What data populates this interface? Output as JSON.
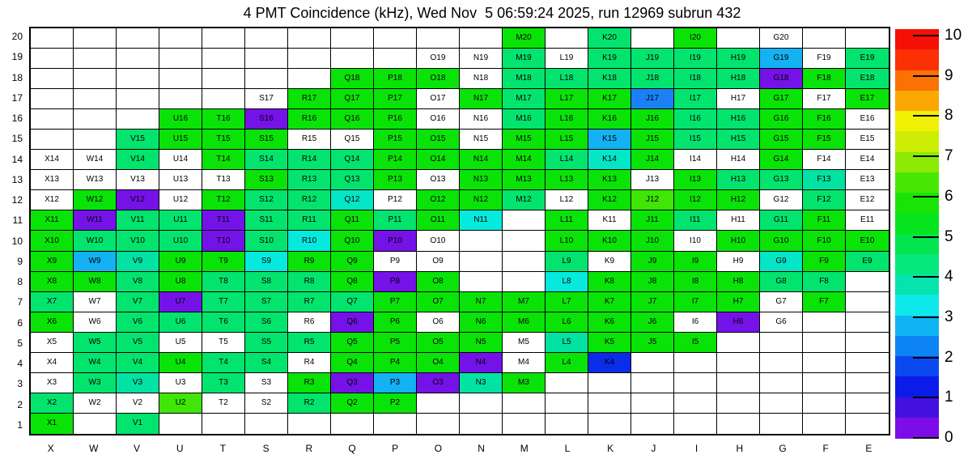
{
  "title": "4 PMT Coincidence (kHz), Wed Nov  5 06:59:24 2025, run 12969 subrun 432",
  "chart_data": {
    "type": "heatmap",
    "title": "4 PMT Coincidence (kHz), Wed Nov  5 06:59:24 2025, run 12969 subrun 432",
    "xlabel": "",
    "ylabel": "",
    "columns": [
      "X",
      "W",
      "V",
      "U",
      "T",
      "S",
      "R",
      "Q",
      "P",
      "O",
      "N",
      "M",
      "L",
      "K",
      "J",
      "I",
      "H",
      "G",
      "F",
      "E"
    ],
    "row_numbers": [
      20,
      19,
      18,
      17,
      16,
      15,
      14,
      13,
      12,
      11,
      10,
      9,
      8,
      7,
      6,
      5,
      4,
      3,
      2,
      1
    ],
    "legend_position": "right",
    "grid_lines": true,
    "cell_label_rule": "column letter + row number (e.g. X14); blank string = no channel drawn; 'w' = white cell with label (no rate)",
    "classes": {
      "g": "#0ae307",
      "lm": "#3fe607",
      "sg": "#02e46e",
      "tq": "#02e2a2",
      "tc": "#04e6c6",
      "cy": "#06eade",
      "sky": "#14b2f2",
      "db": "#1b80f5",
      "bl": "#0b2ce8",
      "vi": "#7512e8",
      "w": "#ffffff"
    },
    "class_value_estimates_khz": {
      "g": 5.3,
      "lm": 6.3,
      "sg": 4.3,
      "tq": 3.8,
      "tc": 3.6,
      "cy": 3.2,
      "sky": 2.7,
      "db": 2.3,
      "bl": 1.3,
      "vi": 0.3,
      "w": null
    },
    "grid": [
      {
        "n": 20,
        "cells": [
          "",
          "",
          "",
          "",
          "",
          "",
          "",
          "",
          "",
          "",
          "",
          "g",
          "",
          "sg",
          "",
          "g",
          "",
          "w",
          "",
          ""
        ]
      },
      {
        "n": 19,
        "cells": [
          "",
          "",
          "",
          "",
          "",
          "",
          "",
          "",
          "",
          "w",
          "w",
          "sg",
          "w",
          "sg",
          "sg",
          "sg",
          "sg",
          "sky",
          "w",
          "sg"
        ]
      },
      {
        "n": 18,
        "cells": [
          "",
          "",
          "",
          "",
          "",
          "",
          "",
          "g",
          "g",
          "g",
          "w",
          "sg",
          "sg",
          "sg",
          "sg",
          "sg",
          "sg",
          "vi",
          "g",
          "sg"
        ]
      },
      {
        "n": 17,
        "cells": [
          "",
          "",
          "",
          "",
          "",
          "w",
          "g",
          "g",
          "g",
          "w",
          "g",
          "sg",
          "g",
          "g",
          "db",
          "sg",
          "w",
          "g",
          "w",
          "g"
        ]
      },
      {
        "n": 16,
        "cells": [
          "",
          "",
          "",
          "g",
          "g",
          "vi",
          "g",
          "g",
          "g",
          "w",
          "w",
          "sg",
          "g",
          "g",
          "g",
          "sg",
          "sg",
          "g",
          "g",
          "w"
        ]
      },
      {
        "n": 15,
        "cells": [
          "",
          "",
          "sg",
          "g",
          "g",
          "g",
          "w",
          "w",
          "g",
          "g",
          "w",
          "g",
          "g",
          "sky",
          "g",
          "sg",
          "sg",
          "g",
          "g",
          "w"
        ]
      },
      {
        "n": 14,
        "cells": [
          "w",
          "w",
          "sg",
          "w",
          "g",
          "sg",
          "sg",
          "sg",
          "g",
          "g",
          "g",
          "g",
          "sg",
          "tc",
          "g",
          "w",
          "w",
          "g",
          "w",
          "w"
        ]
      },
      {
        "n": 13,
        "cells": [
          "w",
          "w",
          "w",
          "w",
          "w",
          "g",
          "sg",
          "sg",
          "g",
          "w",
          "g",
          "g",
          "g",
          "g",
          "w",
          "g",
          "sg",
          "sg",
          "tq",
          "w"
        ]
      },
      {
        "n": 12,
        "cells": [
          "w",
          "g",
          "vi",
          "w",
          "g",
          "sg",
          "sg",
          "tc",
          "w",
          "g",
          "g",
          "sg",
          "w",
          "g",
          "lm",
          "g",
          "g",
          "w",
          "sg",
          "w"
        ]
      },
      {
        "n": 11,
        "cells": [
          "g",
          "vi",
          "sg",
          "sg",
          "vi",
          "sg",
          "sg",
          "g",
          "sg",
          "g",
          "cy",
          "",
          "g",
          "w",
          "g",
          "sg",
          "w",
          "sg",
          "g",
          "w"
        ]
      },
      {
        "n": 10,
        "cells": [
          "g",
          "sg",
          "sg",
          "sg",
          "vi",
          "sg",
          "cy",
          "g",
          "vi",
          "w",
          "",
          "",
          "g",
          "g",
          "g",
          "w",
          "g",
          "g",
          "g",
          "g"
        ]
      },
      {
        "n": 9,
        "cells": [
          "g",
          "sky",
          "tq",
          "g",
          "g",
          "cy",
          "g",
          "g",
          "w",
          "w",
          "",
          "",
          "sg",
          "w",
          "g",
          "g",
          "w",
          "tc",
          "g",
          "sg"
        ]
      },
      {
        "n": 8,
        "cells": [
          "g",
          "g",
          "sg",
          "g",
          "sg",
          "sg",
          "sg",
          "g",
          "vi",
          "g",
          "",
          "",
          "cy",
          "g",
          "g",
          "g",
          "g",
          "sg",
          "sg",
          ""
        ]
      },
      {
        "n": 7,
        "cells": [
          "sg",
          "w",
          "sg",
          "vi",
          "sg",
          "sg",
          "sg",
          "sg",
          "g",
          "g",
          "g",
          "g",
          "g",
          "g",
          "g",
          "g",
          "g",
          "w",
          "g",
          ""
        ]
      },
      {
        "n": 6,
        "cells": [
          "g",
          "w",
          "sg",
          "sg",
          "sg",
          "sg",
          "w",
          "vi",
          "g",
          "w",
          "g",
          "g",
          "g",
          "g",
          "g",
          "w",
          "vi",
          "w",
          "",
          ""
        ]
      },
      {
        "n": 5,
        "cells": [
          "w",
          "sg",
          "sg",
          "w",
          "w",
          "sg",
          "sg",
          "g",
          "g",
          "g",
          "g",
          "w",
          "tq",
          "g",
          "g",
          "g",
          "",
          "",
          "",
          ""
        ]
      },
      {
        "n": 4,
        "cells": [
          "w",
          "sg",
          "sg",
          "g",
          "sg",
          "sg",
          "w",
          "g",
          "g",
          "g",
          "vi",
          "w",
          "g",
          "bl",
          "",
          "",
          "",
          "",
          "",
          ""
        ]
      },
      {
        "n": 3,
        "cells": [
          "w",
          "sg",
          "tq",
          "w",
          "sg",
          "w",
          "g",
          "vi",
          "sky",
          "vi",
          "tq",
          "g",
          "",
          "",
          "",
          "",
          "",
          "",
          "",
          ""
        ]
      },
      {
        "n": 2,
        "cells": [
          "sg",
          "w",
          "w",
          "lm",
          "w",
          "w",
          "sg",
          "g",
          "g",
          "",
          "",
          "",
          "",
          "",
          "",
          "",
          "",
          "",
          "",
          ""
        ]
      },
      {
        "n": 1,
        "cells": [
          "g",
          "",
          "sg",
          "",
          "",
          "",
          "",
          "",
          "",
          "",
          "",
          "",
          "",
          "",
          "",
          "",
          "",
          "",
          "",
          ""
        ]
      }
    ],
    "colorbar": {
      "min": 0,
      "max": 10,
      "tick_labels": [
        "0",
        "1",
        "2",
        "3",
        "4",
        "5",
        "6",
        "7",
        "8",
        "9",
        "10"
      ],
      "palette_bottom_to_top": [
        "#7d0ce8",
        "#4311dd",
        "#0b1ce8",
        "#0b49f0",
        "#0c83f5",
        "#0fb4f2",
        "#0fe8ea",
        "#07e3ae",
        "#05e87e",
        "#04e44f",
        "#06e41f",
        "#1ae407",
        "#49e704",
        "#8cea04",
        "#cdee04",
        "#f2f005",
        "#fba703",
        "#fa7203",
        "#fb3105",
        "#f51005"
      ]
    }
  }
}
